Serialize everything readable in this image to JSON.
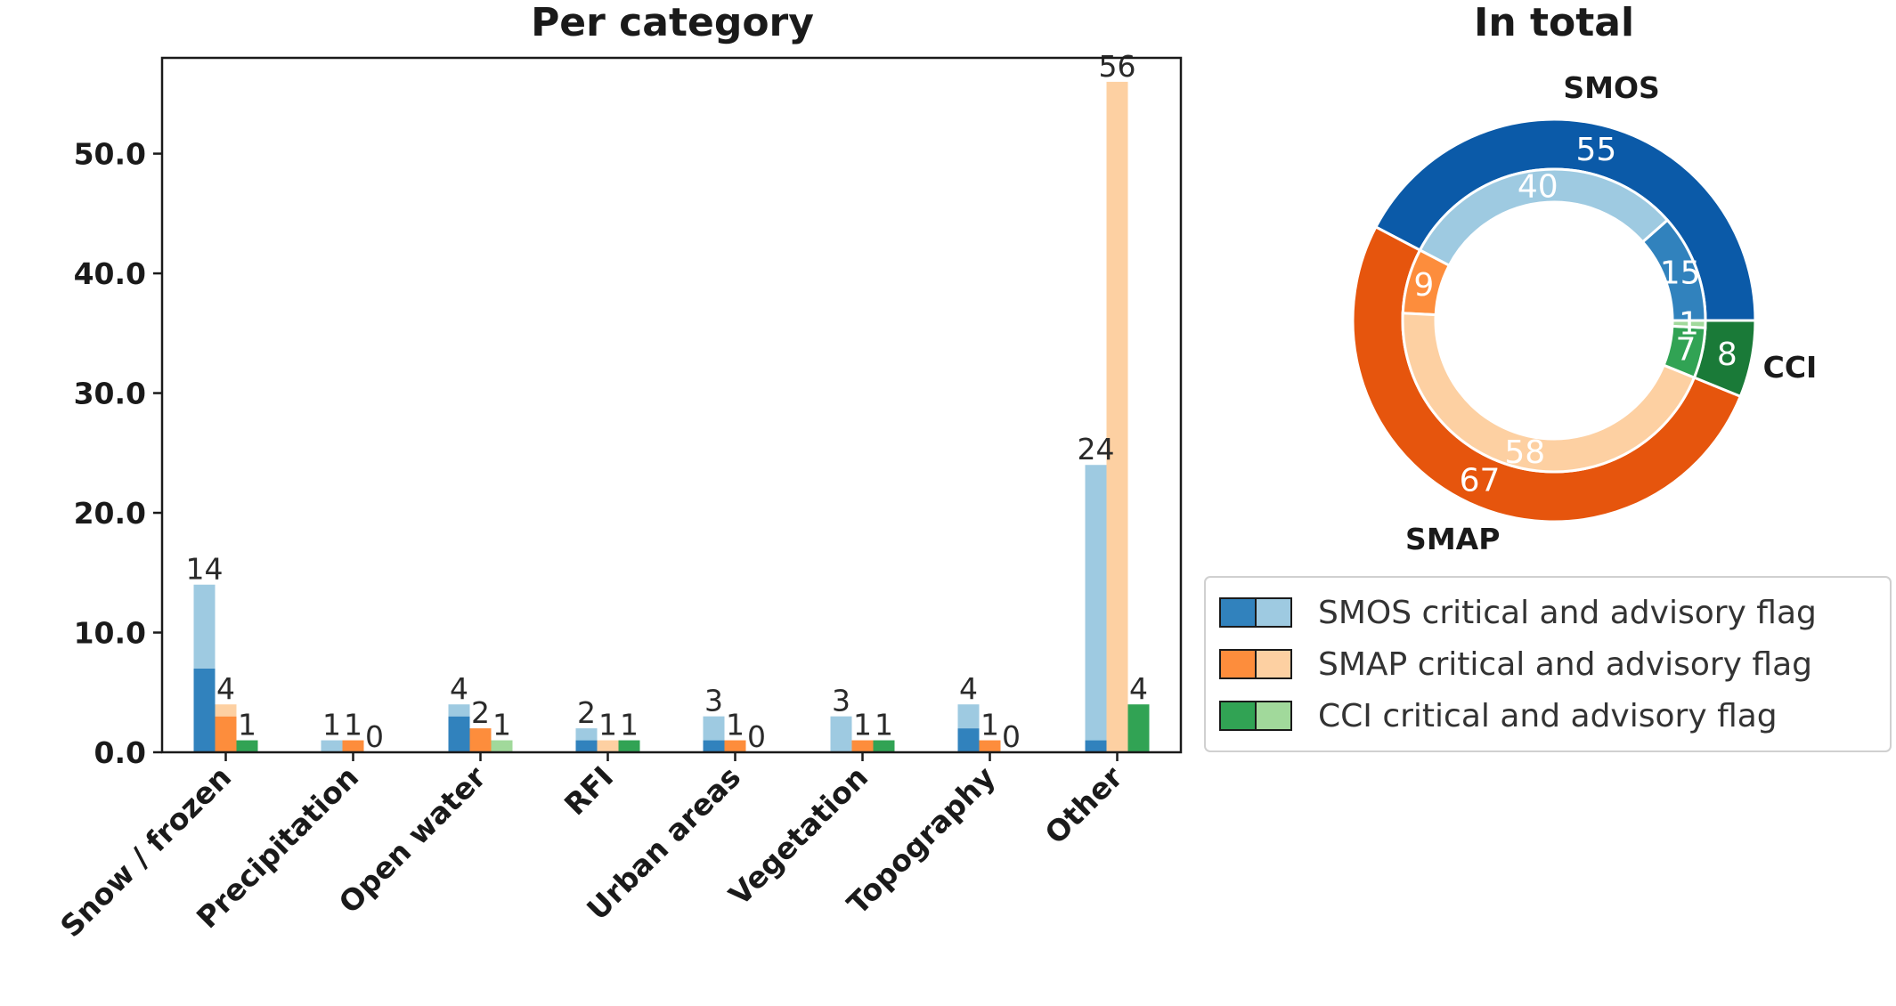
{
  "chart_data": [
    {
      "type": "bar",
      "title": "Per category",
      "categories": [
        "Snow / frozen",
        "Precipitation",
        "Open water",
        "RFI",
        "Urban areas",
        "Vegetation",
        "Topography",
        "Other"
      ],
      "ylim": [
        0,
        58
      ],
      "yticks": [
        0,
        10,
        20,
        30,
        40,
        50
      ],
      "ytick_labels": [
        "0.0",
        "10.0",
        "20.0",
        "30.0",
        "40.0",
        "50.0"
      ],
      "series": [
        {
          "name": "SMOS",
          "critical": [
            7,
            0,
            3,
            1,
            1,
            0,
            2,
            1
          ],
          "advisory": [
            7,
            1,
            1,
            1,
            2,
            3,
            2,
            23
          ],
          "total": [
            14,
            1,
            4,
            2,
            3,
            3,
            4,
            24
          ],
          "critical_color": "#3182bd",
          "advisory_color": "#9ecae1"
        },
        {
          "name": "SMAP",
          "critical": [
            3,
            1,
            2,
            0,
            1,
            1,
            1,
            0
          ],
          "advisory": [
            1,
            0,
            0,
            1,
            0,
            0,
            0,
            56
          ],
          "total": [
            4,
            1,
            2,
            1,
            1,
            1,
            1,
            56
          ],
          "critical_color": "#fd8d3c",
          "advisory_color": "#fdd0a2"
        },
        {
          "name": "CCI",
          "critical": [
            1,
            0,
            0,
            1,
            0,
            1,
            0,
            4
          ],
          "advisory": [
            0,
            0,
            1,
            0,
            0,
            0,
            0,
            0
          ],
          "total": [
            1,
            0,
            1,
            1,
            0,
            1,
            0,
            4
          ],
          "critical_color": "#31a354",
          "advisory_color": "#a1d99b"
        }
      ],
      "bar_labels": [
        [
          "14",
          "4",
          "1"
        ],
        [
          "1",
          "1",
          "0"
        ],
        [
          "4",
          "2",
          "1"
        ],
        [
          "2",
          "1",
          "1"
        ],
        [
          "3",
          "1",
          "0"
        ],
        [
          "3",
          "1",
          "1"
        ],
        [
          "4",
          "1",
          "0"
        ],
        [
          "24",
          "56",
          "4"
        ]
      ]
    },
    {
      "type": "pie",
      "title": "In total",
      "outer": [
        {
          "name": "SMOS",
          "value": 55,
          "color": "#0b5aa8"
        },
        {
          "name": "SMAP",
          "value": 67,
          "color": "#e6550d"
        },
        {
          "name": "CCI",
          "value": 8,
          "color": "#1a7a38"
        }
      ],
      "inner": [
        {
          "group": "SMOS",
          "kind": "critical",
          "value": 15,
          "color": "#3182bd"
        },
        {
          "group": "SMOS",
          "kind": "advisory",
          "value": 40,
          "color": "#9ecae1"
        },
        {
          "group": "SMAP",
          "kind": "critical",
          "value": 9,
          "color": "#fd8d3c"
        },
        {
          "group": "SMAP",
          "kind": "advisory",
          "value": 58,
          "color": "#fdd0a2"
        },
        {
          "group": "CCI",
          "kind": "critical",
          "value": 7,
          "color": "#31a354"
        },
        {
          "group": "CCI",
          "kind": "advisory",
          "value": 1,
          "color": "#a1d99b"
        }
      ]
    }
  ],
  "legend": {
    "placement": "right-middle",
    "entries": [
      {
        "label": "SMOS critical and advisory flag",
        "color_a": "#3182bd",
        "color_b": "#9ecae1"
      },
      {
        "label": "SMAP critical and advisory flag",
        "color_a": "#fd8d3c",
        "color_b": "#fdd0a2"
      },
      {
        "label": "CCI critical and advisory flag",
        "color_a": "#31a354",
        "color_b": "#a1d99b"
      }
    ]
  }
}
